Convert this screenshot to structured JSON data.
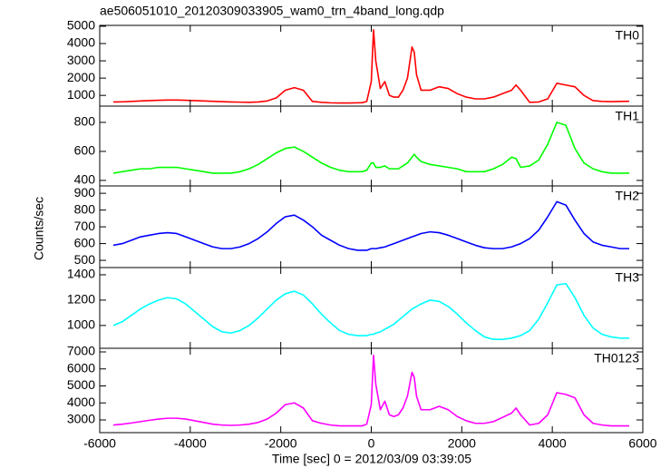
{
  "chart_data": {
    "type": "line",
    "title": "ae506051010_20120309033905_wam0_trn_4band_long.qdp",
    "xlabel": "Time [sec] 0 = 2012/03/09 03:39:05",
    "ylabel": "Counts/sec",
    "xlim": [
      -6000,
      6000
    ],
    "xticks": [
      -6000,
      -4000,
      -2000,
      0,
      2000,
      4000,
      6000
    ],
    "x": [
      -5700,
      -5500,
      -5300,
      -5100,
      -4900,
      -4700,
      -4500,
      -4300,
      -4100,
      -3900,
      -3700,
      -3500,
      -3300,
      -3100,
      -2900,
      -2700,
      -2500,
      -2300,
      -2100,
      -1900,
      -1700,
      -1500,
      -1300,
      -1100,
      -900,
      -700,
      -500,
      -300,
      -200,
      -100,
      0,
      50,
      100,
      200,
      300,
      400,
      500,
      600,
      700,
      800,
      900,
      950,
      1000,
      1100,
      1300,
      1500,
      1700,
      1900,
      2100,
      2300,
      2500,
      2700,
      2900,
      3100,
      3200,
      3300,
      3500,
      3700,
      3900,
      4100,
      4300,
      4500,
      4700,
      4900,
      5100,
      5300,
      5500,
      5700
    ],
    "panels": [
      {
        "name": "TH0",
        "color": "#ff0000",
        "ylim": [
          380,
          5050
        ],
        "yticks": [
          1000,
          2000,
          3000,
          4000,
          5000
        ],
        "values": [
          620,
          630,
          650,
          680,
          700,
          720,
          730,
          730,
          720,
          700,
          680,
          660,
          640,
          620,
          610,
          600,
          620,
          680,
          850,
          1300,
          1450,
          1300,
          650,
          600,
          570,
          560,
          560,
          570,
          580,
          650,
          1800,
          4800,
          3000,
          1400,
          1800,
          1000,
          900,
          900,
          1300,
          2000,
          3800,
          3500,
          2200,
          1300,
          1300,
          1500,
          1400,
          1100,
          900,
          800,
          800,
          900,
          1100,
          1300,
          1600,
          1300,
          600,
          620,
          800,
          1700,
          1600,
          1500,
          1000,
          700,
          650,
          640,
          650,
          660
        ]
      },
      {
        "name": "TH1",
        "color": "#00ff00",
        "ylim": [
          362,
          912
        ],
        "yticks": [
          400,
          600,
          800
        ],
        "values": [
          450,
          460,
          470,
          480,
          480,
          490,
          490,
          490,
          480,
          470,
          460,
          450,
          450,
          450,
          460,
          480,
          510,
          550,
          590,
          620,
          630,
          600,
          560,
          520,
          490,
          470,
          460,
          460,
          460,
          470,
          520,
          520,
          490,
          490,
          500,
          480,
          480,
          480,
          500,
          520,
          560,
          580,
          560,
          530,
          510,
          500,
          490,
          480,
          460,
          460,
          460,
          480,
          510,
          560,
          550,
          490,
          500,
          540,
          650,
          800,
          780,
          620,
          520,
          480,
          460,
          450,
          450,
          450
        ]
      },
      {
        "name": "TH2",
        "color": "#0000ff",
        "ylim": [
          457,
          944
        ],
        "yticks": [
          500,
          600,
          700,
          800,
          900
        ],
        "values": [
          590,
          600,
          620,
          640,
          650,
          660,
          665,
          660,
          640,
          620,
          600,
          580,
          570,
          570,
          580,
          600,
          630,
          670,
          720,
          760,
          770,
          740,
          700,
          650,
          620,
          590,
          570,
          560,
          560,
          560,
          570,
          570,
          570,
          575,
          580,
          590,
          600,
          610,
          620,
          630,
          640,
          645,
          650,
          660,
          670,
          665,
          650,
          630,
          610,
          590,
          575,
          570,
          570,
          580,
          590,
          600,
          630,
          680,
          760,
          850,
          830,
          740,
          660,
          610,
          590,
          580,
          570,
          570
        ]
      },
      {
        "name": "TH3",
        "color": "#00ffff",
        "ylim": [
          820,
          1457
        ],
        "yticks": [
          1000,
          1200,
          1400
        ],
        "values": [
          1000,
          1030,
          1080,
          1130,
          1170,
          1200,
          1220,
          1210,
          1170,
          1110,
          1050,
          990,
          950,
          940,
          960,
          1000,
          1060,
          1130,
          1200,
          1250,
          1270,
          1240,
          1170,
          1090,
          1020,
          960,
          930,
          920,
          920,
          920,
          930,
          930,
          940,
          950,
          970,
          990,
          1010,
          1040,
          1070,
          1100,
          1130,
          1140,
          1150,
          1170,
          1200,
          1190,
          1150,
          1090,
          1020,
          960,
          910,
          890,
          890,
          900,
          910,
          920,
          960,
          1050,
          1180,
          1320,
          1330,
          1220,
          1080,
          980,
          930,
          910,
          900,
          900
        ]
      },
      {
        "name": "TH0123",
        "color": "#ff00ff",
        "ylim": [
          2253,
          7213
        ],
        "yticks": [
          3000,
          4000,
          5000,
          6000,
          7000
        ],
        "values": [
          2700,
          2750,
          2820,
          2900,
          2980,
          3050,
          3100,
          3100,
          3050,
          2950,
          2850,
          2750,
          2700,
          2680,
          2700,
          2750,
          2850,
          3050,
          3400,
          3900,
          4000,
          3700,
          2950,
          2800,
          2700,
          2650,
          2650,
          2650,
          2650,
          2750,
          3900,
          6800,
          5100,
          3600,
          4100,
          3300,
          3200,
          3300,
          3700,
          4400,
          5800,
          5500,
          4400,
          3600,
          3600,
          3800,
          3600,
          3200,
          2950,
          2800,
          2800,
          2900,
          3150,
          3400,
          3700,
          3300,
          2700,
          2800,
          3300,
          4600,
          4500,
          4300,
          3300,
          2800,
          2700,
          2650,
          2650,
          2650
        ]
      }
    ]
  }
}
